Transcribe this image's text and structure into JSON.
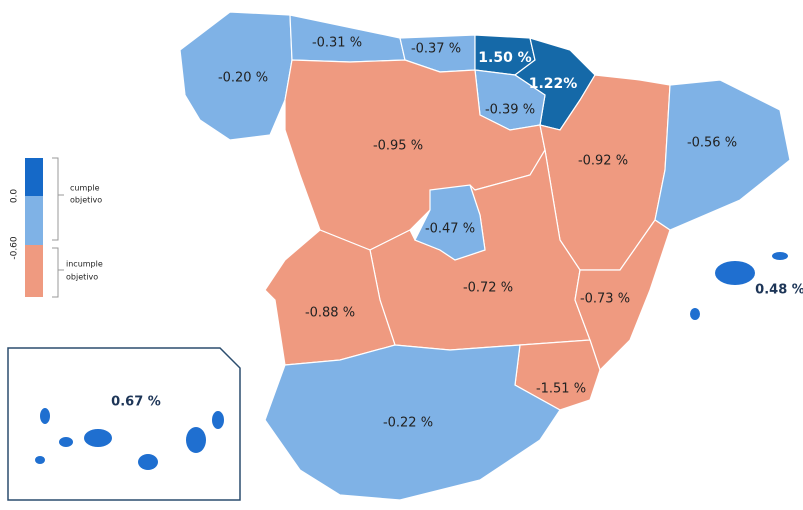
{
  "map": {
    "regions": [
      {
        "label": "-0.20 %"
      },
      {
        "label": "-0.31 %"
      },
      {
        "label": "-0.37 %"
      },
      {
        "label": "1.50 %"
      },
      {
        "label": "1.22%"
      },
      {
        "label": "-0.39 %"
      },
      {
        "label": "-0.95 %"
      },
      {
        "label": "-0.92 %"
      },
      {
        "label": "-0.56 %"
      },
      {
        "label": "-0.47 %"
      },
      {
        "label": "-0.72 %"
      },
      {
        "label": "-0.88 %"
      },
      {
        "label": "-0.73 %"
      },
      {
        "label": "-1.51 %"
      },
      {
        "label": "-0.22 %"
      },
      {
        "label": "0.48 %"
      },
      {
        "label": "0.67 %"
      }
    ],
    "legend": {
      "ticks": [
        "0.0",
        "-0.60"
      ],
      "items": [
        [
          "cumple",
          "objetivo"
        ],
        [
          "incumple",
          "objetivo"
        ]
      ]
    }
  }
}
